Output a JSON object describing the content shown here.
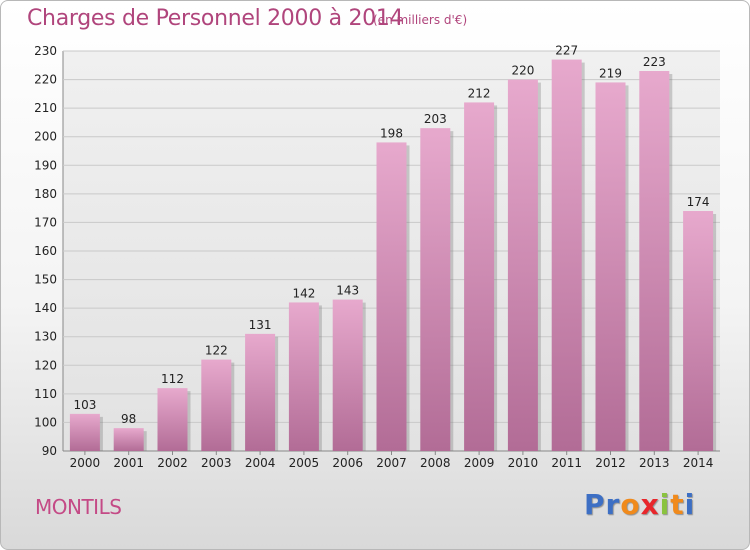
{
  "header": {
    "title": "Charges de Personnel 2000 à 2014",
    "unit": "(en milliers d'€)"
  },
  "footer": {
    "commune": "MONTILS",
    "logo_letters": [
      "P",
      "r",
      "o",
      "x",
      "i",
      "t",
      "i"
    ],
    "logo_colors": [
      "#3d6fc4",
      "#3d6fc4",
      "#f08a1c",
      "#e8262b",
      "#8ac33f",
      "#f08a1c",
      "#3d6fc4"
    ]
  },
  "colors": {
    "bar_top": "#e7a9cd",
    "bar_bottom": "#b26c96",
    "bar_shadow": "#7a7a7a",
    "grid": "#c9c9c9",
    "plot_bg": "#e6e6e6"
  },
  "chart_data": {
    "type": "bar",
    "title": "Charges de Personnel 2000 à 2014",
    "subtitle": "(en milliers d'€)",
    "categories": [
      "2000",
      "2001",
      "2002",
      "2003",
      "2004",
      "2005",
      "2006",
      "2007",
      "2008",
      "2009",
      "2010",
      "2011",
      "2012",
      "2013",
      "2014"
    ],
    "values": [
      103,
      98,
      112,
      122,
      131,
      142,
      143,
      198,
      203,
      212,
      220,
      227,
      219,
      223,
      174
    ],
    "ylim": [
      90,
      230
    ],
    "yticks": [
      90,
      100,
      110,
      120,
      130,
      140,
      150,
      160,
      170,
      180,
      190,
      200,
      210,
      220,
      230
    ],
    "grid": true,
    "data_labels": true
  }
}
